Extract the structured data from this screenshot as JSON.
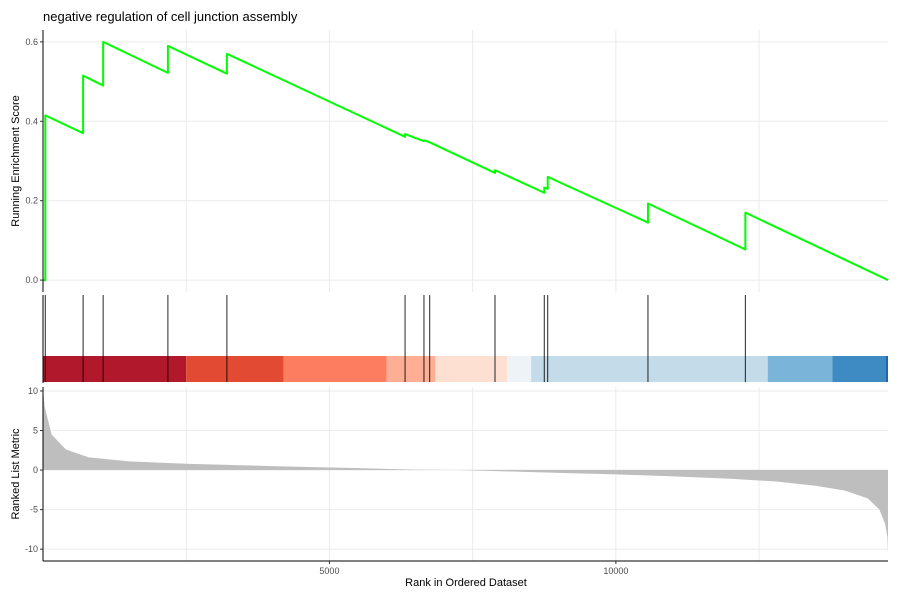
{
  "chart_data": {
    "type": "line",
    "title": "negative regulation of cell junction assembly",
    "xlabel": "Rank in Ordered Dataset",
    "x_ticks": [
      5000,
      10000
    ],
    "xlim": [
      0,
      14750
    ],
    "grid": true,
    "panels": {
      "running_score": {
        "ylabel": "Running Enrichment Score",
        "ylim": [
          -0.03,
          0.63
        ],
        "y_ticks": [
          0.0,
          0.2,
          0.4,
          0.6
        ],
        "color": "#00ff00",
        "points": [
          [
            0,
            0.0
          ],
          [
            40,
            0.0
          ],
          [
            40,
            0.415
          ],
          [
            700,
            0.37
          ],
          [
            700,
            0.515
          ],
          [
            1050,
            0.49
          ],
          [
            1050,
            0.6
          ],
          [
            2180,
            0.522
          ],
          [
            2180,
            0.59
          ],
          [
            3210,
            0.52
          ],
          [
            3210,
            0.57
          ],
          [
            6320,
            0.361
          ],
          [
            6320,
            0.368
          ],
          [
            6650,
            0.35
          ],
          [
            6660,
            0.352
          ],
          [
            6750,
            0.347
          ],
          [
            7890,
            0.27
          ],
          [
            7890,
            0.277
          ],
          [
            8750,
            0.22
          ],
          [
            8750,
            0.233
          ],
          [
            8810,
            0.23
          ],
          [
            8810,
            0.26
          ],
          [
            10560,
            0.145
          ],
          [
            10560,
            0.193
          ],
          [
            12260,
            0.077
          ],
          [
            12260,
            0.17
          ],
          [
            14750,
            0.0
          ]
        ]
      },
      "hits": {
        "positions": [
          40,
          700,
          1050,
          2180,
          3210,
          6320,
          6650,
          6750,
          7890,
          8750,
          8810,
          10560,
          12260
        ]
      },
      "color_bar": {
        "bands": [
          {
            "from": 0,
            "to": 2500,
            "color": "#b2182b"
          },
          {
            "from": 2500,
            "to": 4200,
            "color": "#e34a33"
          },
          {
            "from": 4200,
            "to": 6000,
            "color": "#fc7d5f"
          },
          {
            "from": 6000,
            "to": 6850,
            "color": "#fdae95"
          },
          {
            "from": 6850,
            "to": 8100,
            "color": "#fde0d2"
          },
          {
            "from": 8100,
            "to": 8520,
            "color": "#eef3f8"
          },
          {
            "from": 8520,
            "to": 12650,
            "color": "#c4dcea"
          },
          {
            "from": 12650,
            "to": 13780,
            "color": "#7ab5d9"
          },
          {
            "from": 13780,
            "to": 14750,
            "color": "#3e8bc4"
          }
        ]
      },
      "ranked_metric": {
        "ylabel": "Ranked List Metric",
        "ylim": [
          -11.5,
          10.5
        ],
        "y_ticks": [
          -10,
          -5,
          0,
          5,
          10
        ],
        "fill": "#bebebe",
        "curve": [
          [
            0,
            10.2
          ],
          [
            30,
            8.0
          ],
          [
            150,
            4.5
          ],
          [
            400,
            2.6
          ],
          [
            800,
            1.6
          ],
          [
            1500,
            1.1
          ],
          [
            2500,
            0.8
          ],
          [
            4000,
            0.5
          ],
          [
            5500,
            0.25
          ],
          [
            6500,
            0.05
          ],
          [
            7200,
            0.0
          ],
          [
            8000,
            -0.15
          ],
          [
            9000,
            -0.35
          ],
          [
            10000,
            -0.55
          ],
          [
            11000,
            -0.8
          ],
          [
            12000,
            -1.1
          ],
          [
            12800,
            -1.45
          ],
          [
            13500,
            -2.0
          ],
          [
            14000,
            -2.6
          ],
          [
            14400,
            -3.6
          ],
          [
            14600,
            -5.0
          ],
          [
            14700,
            -6.8
          ],
          [
            14740,
            -8.5
          ],
          [
            14750,
            -10.7
          ]
        ]
      }
    }
  }
}
